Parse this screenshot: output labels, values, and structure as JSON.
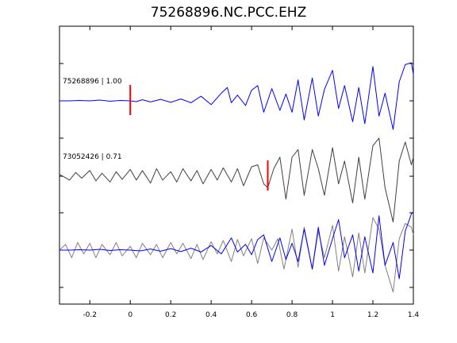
{
  "title": "75268896.NC.PCC.EHZ",
  "chart_data": {
    "type": "line",
    "title": "75268896.NC.PCC.EHZ",
    "xlim": [
      -0.35,
      1.4
    ],
    "xticks": [
      "-0.2",
      "0",
      "0.2",
      "0.4",
      "0.6",
      "0.8",
      "1",
      "1.2",
      "1.4"
    ],
    "xtick_values": [
      -0.2,
      0,
      0.2,
      0.4,
      0.6,
      0.8,
      1.0,
      1.2,
      1.4
    ],
    "grid": false,
    "colors": {
      "blue": "#0000ff",
      "black": "#404040",
      "gray": "#808080",
      "pick": "#ff0000"
    },
    "traces": [
      {
        "label": "75268896 | 1.00",
        "pick_time": 0.0
      },
      {
        "label": "73052426 | 0.71",
        "pick_time": 0.68
      }
    ],
    "series": [
      {
        "color": "#0000ff",
        "x": [
          -0.35,
          -0.3,
          -0.25,
          -0.2,
          -0.15,
          -0.1,
          -0.05,
          0.0,
          0.03,
          0.06,
          0.1,
          0.15,
          0.2,
          0.25,
          0.3,
          0.35,
          0.4,
          0.45,
          0.48,
          0.5,
          0.53,
          0.57,
          0.6,
          0.63,
          0.66,
          0.7,
          0.74,
          0.77,
          0.8,
          0.83,
          0.86,
          0.9,
          0.93,
          0.96,
          1.0,
          1.03,
          1.06,
          1.1,
          1.13,
          1.16,
          1.2,
          1.23,
          1.26,
          1.3,
          1.33,
          1.36,
          1.39,
          1.4
        ],
        "y": [
          0,
          0,
          0.01,
          0,
          0.02,
          -0.01,
          0.01,
          0,
          -0.02,
          0.03,
          -0.03,
          0.04,
          -0.04,
          0.05,
          -0.05,
          0.12,
          -0.1,
          0.2,
          0.35,
          -0.05,
          0.15,
          -0.12,
          0.28,
          0.4,
          -0.3,
          0.32,
          -0.25,
          0.18,
          -0.3,
          0.55,
          -0.5,
          0.6,
          -0.4,
          0.3,
          0.8,
          -0.2,
          0.4,
          -0.55,
          0.35,
          -0.6,
          0.9,
          -0.4,
          0.2,
          -0.75,
          0.5,
          0.95,
          1.0,
          0.7
        ]
      },
      {
        "color": "#404040",
        "x": [
          -0.35,
          -0.3,
          -0.27,
          -0.24,
          -0.2,
          -0.17,
          -0.14,
          -0.1,
          -0.07,
          -0.04,
          0.0,
          0.03,
          0.06,
          0.1,
          0.13,
          0.16,
          0.2,
          0.23,
          0.26,
          0.3,
          0.33,
          0.36,
          0.4,
          0.43,
          0.46,
          0.5,
          0.53,
          0.56,
          0.6,
          0.63,
          0.66,
          0.68,
          0.71,
          0.74,
          0.77,
          0.8,
          0.83,
          0.86,
          0.9,
          0.93,
          0.96,
          1.0,
          1.03,
          1.06,
          1.1,
          1.13,
          1.16,
          1.2,
          1.23,
          1.26,
          1.3,
          1.33,
          1.36,
          1.39,
          1.4
        ],
        "y": [
          0.05,
          -0.1,
          0.1,
          -0.05,
          0.15,
          -0.12,
          0.08,
          -0.15,
          0.12,
          -0.08,
          0.18,
          -0.1,
          0.15,
          -0.18,
          0.2,
          -0.1,
          0.12,
          -0.15,
          0.2,
          -0.12,
          0.15,
          -0.2,
          0.18,
          -0.1,
          0.22,
          -0.15,
          0.2,
          -0.25,
          0.25,
          0.3,
          -0.2,
          -0.3,
          0.2,
          0.5,
          -0.6,
          0.5,
          0.7,
          -0.5,
          0.7,
          0.2,
          -0.5,
          0.75,
          -0.2,
          0.4,
          -0.7,
          0.5,
          -0.6,
          0.8,
          1.0,
          -0.3,
          -1.2,
          0.4,
          0.9,
          0.3,
          0.5
        ]
      },
      {
        "color": "#808080",
        "x": [
          -0.35,
          -0.32,
          -0.29,
          -0.26,
          -0.23,
          -0.2,
          -0.17,
          -0.14,
          -0.1,
          -0.07,
          -0.04,
          0.0,
          0.03,
          0.06,
          0.1,
          0.13,
          0.16,
          0.2,
          0.23,
          0.26,
          0.3,
          0.33,
          0.36,
          0.4,
          0.43,
          0.46,
          0.5,
          0.53,
          0.56,
          0.6,
          0.63,
          0.66,
          0.7,
          0.73,
          0.76,
          0.8,
          0.83,
          0.86,
          0.9,
          0.93,
          0.96,
          1.0,
          1.03,
          1.06,
          1.1,
          1.13,
          1.16,
          1.2,
          1.23,
          1.26,
          1.3,
          1.33,
          1.36,
          1.39,
          1.4
        ],
        "y": [
          0,
          0.15,
          -0.2,
          0.2,
          -0.1,
          0.18,
          -0.2,
          0.15,
          -0.12,
          0.2,
          -0.15,
          0.1,
          -0.2,
          0.18,
          -0.12,
          0.15,
          -0.2,
          0.2,
          -0.1,
          0.18,
          -0.22,
          0.15,
          -0.25,
          0.22,
          -0.1,
          0.25,
          -0.3,
          0.28,
          -0.15,
          0.3,
          -0.35,
          0.32,
          0.0,
          0.3,
          -0.5,
          0.55,
          -0.45,
          0.6,
          -0.5,
          0.5,
          -0.2,
          0.65,
          -0.55,
          0.35,
          -0.7,
          0.45,
          -0.6,
          0.85,
          0.55,
          -0.4,
          -1.1,
          0.3,
          0.7,
          0.6,
          0.4
        ]
      },
      {
        "color": "#0000ff",
        "x": [
          -0.35,
          -0.3,
          -0.25,
          -0.2,
          -0.15,
          -0.1,
          -0.05,
          0.0,
          0.05,
          0.1,
          0.15,
          0.2,
          0.25,
          0.3,
          0.35,
          0.4,
          0.45,
          0.5,
          0.53,
          0.57,
          0.6,
          0.63,
          0.66,
          0.7,
          0.74,
          0.77,
          0.8,
          0.83,
          0.86,
          0.9,
          0.93,
          0.96,
          1.0,
          1.03,
          1.06,
          1.1,
          1.13,
          1.16,
          1.2,
          1.23,
          1.26,
          1.3,
          1.33,
          1.36,
          1.39,
          1.4
        ],
        "y": [
          0,
          0,
          0.01,
          0,
          0.02,
          -0.01,
          0.01,
          0,
          -0.02,
          0.03,
          -0.03,
          0.04,
          -0.04,
          0.05,
          -0.05,
          0.12,
          -0.1,
          0.32,
          -0.05,
          0.15,
          -0.12,
          0.28,
          0.4,
          -0.3,
          0.32,
          -0.25,
          0.18,
          -0.3,
          0.55,
          -0.5,
          0.6,
          -0.4,
          0.3,
          0.8,
          -0.2,
          0.4,
          -0.55,
          0.35,
          -0.6,
          0.9,
          -0.4,
          0.2,
          -0.75,
          0.5,
          0.95,
          1.0
        ]
      }
    ]
  }
}
